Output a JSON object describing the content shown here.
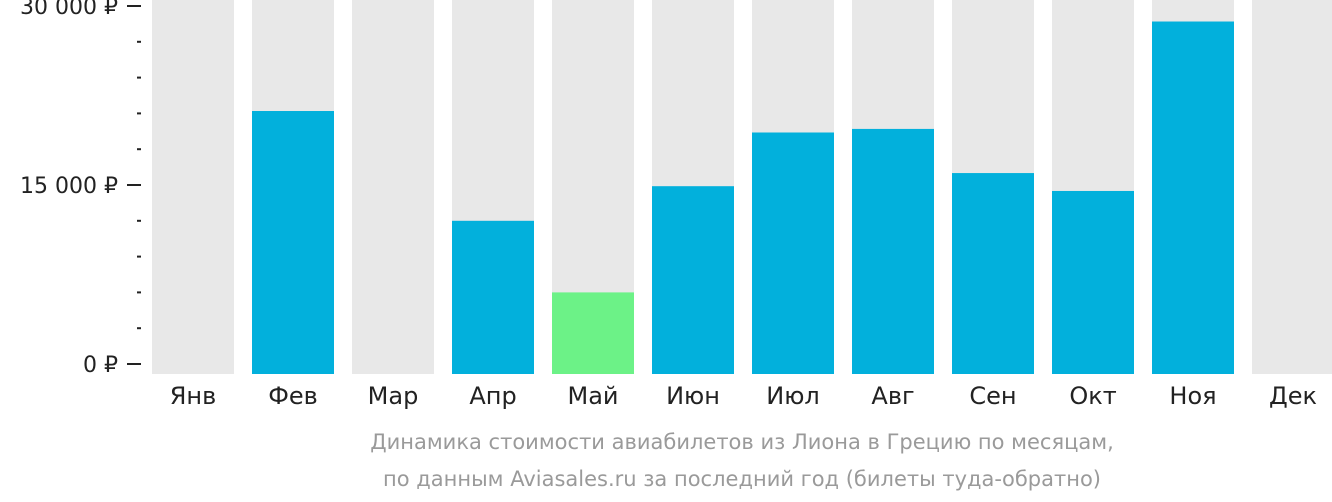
{
  "colors": {
    "bar": "#02b0dc",
    "bar_min": "#6cf287",
    "track": "#e8e8e8",
    "axis": "#222222"
  },
  "chart_data": {
    "type": "bar",
    "categories": [
      "Янв",
      "Фев",
      "Мар",
      "Апр",
      "Май",
      "Июн",
      "Июл",
      "Авг",
      "Сен",
      "Окт",
      "Ноя",
      "Дек"
    ],
    "values": [
      null,
      21200,
      null,
      12000,
      6000,
      14900,
      19400,
      19700,
      16000,
      14500,
      28700,
      null
    ],
    "highlight_min_category": "Май",
    "ylim": [
      0,
      30000
    ],
    "y_ticks": [
      {
        "value": 30000,
        "label": "30 000 ₽"
      },
      {
        "value": 15000,
        "label": "15 000 ₽"
      },
      {
        "value": 0,
        "label": "0 ₽"
      }
    ],
    "y_minor_step": 3000,
    "title": "",
    "xlabel": "",
    "ylabel": "",
    "grid": false,
    "legend": "none"
  },
  "caption": {
    "line1": "Динамика стоимости авиабилетов из Лиона в Грецию по месяцам,",
    "line2": "по данным Aviasales.ru за последний год (билеты туда-обратно)"
  }
}
